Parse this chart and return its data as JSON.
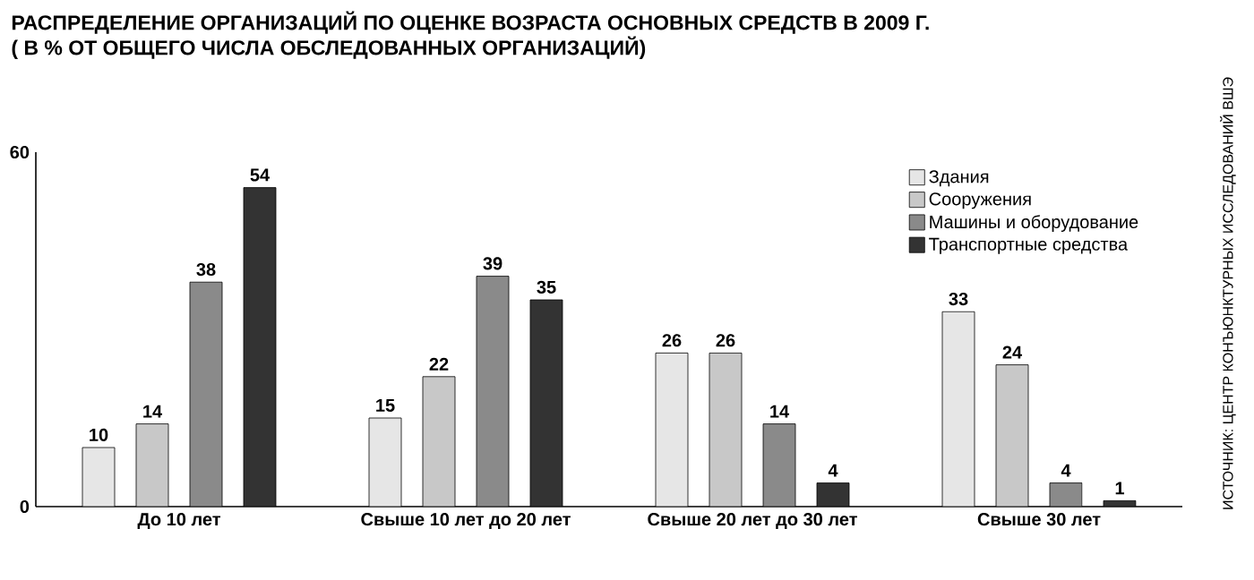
{
  "chart_data": {
    "type": "bar",
    "title": "РАСПРЕДЕЛЕНИЕ ОРГАНИЗАЦИЙ ПО ОЦЕНКЕ ВОЗРАСТА ОСНОВНЫХ СРЕДСТВ В 2009 Г.",
    "subtitle": "( В % ОТ ОБЩЕГО ЧИСЛА ОБСЛЕДОВАННЫХ ОРГАНИЗАЦИЙ)",
    "categories": [
      "До 10 лет",
      "Свыше 10 лет до 20 лет",
      "Свыше 20 лет до 30 лет",
      "Свыше 30 лет"
    ],
    "series": [
      {
        "name": "Здания",
        "color": "#e6e6e6",
        "values": [
          10,
          15,
          26,
          33
        ]
      },
      {
        "name": "Сооружения",
        "color": "#c8c8c8",
        "values": [
          14,
          22,
          26,
          24
        ]
      },
      {
        "name": "Машины и оборудование",
        "color": "#8a8a8a",
        "values": [
          38,
          39,
          14,
          4
        ]
      },
      {
        "name": "Транспортные средства",
        "color": "#333333",
        "values": [
          54,
          35,
          4,
          1
        ]
      }
    ],
    "ylim": [
      0,
      60
    ],
    "yticks": [
      0,
      60
    ],
    "data_labels": true,
    "legend": "top right",
    "annotations": [
      "ИСТОЧНИК: ЦЕНТР КОНЪЮНКТУРНЫХ ИССЛЕДОВАНИЙ ВШЭ"
    ]
  }
}
